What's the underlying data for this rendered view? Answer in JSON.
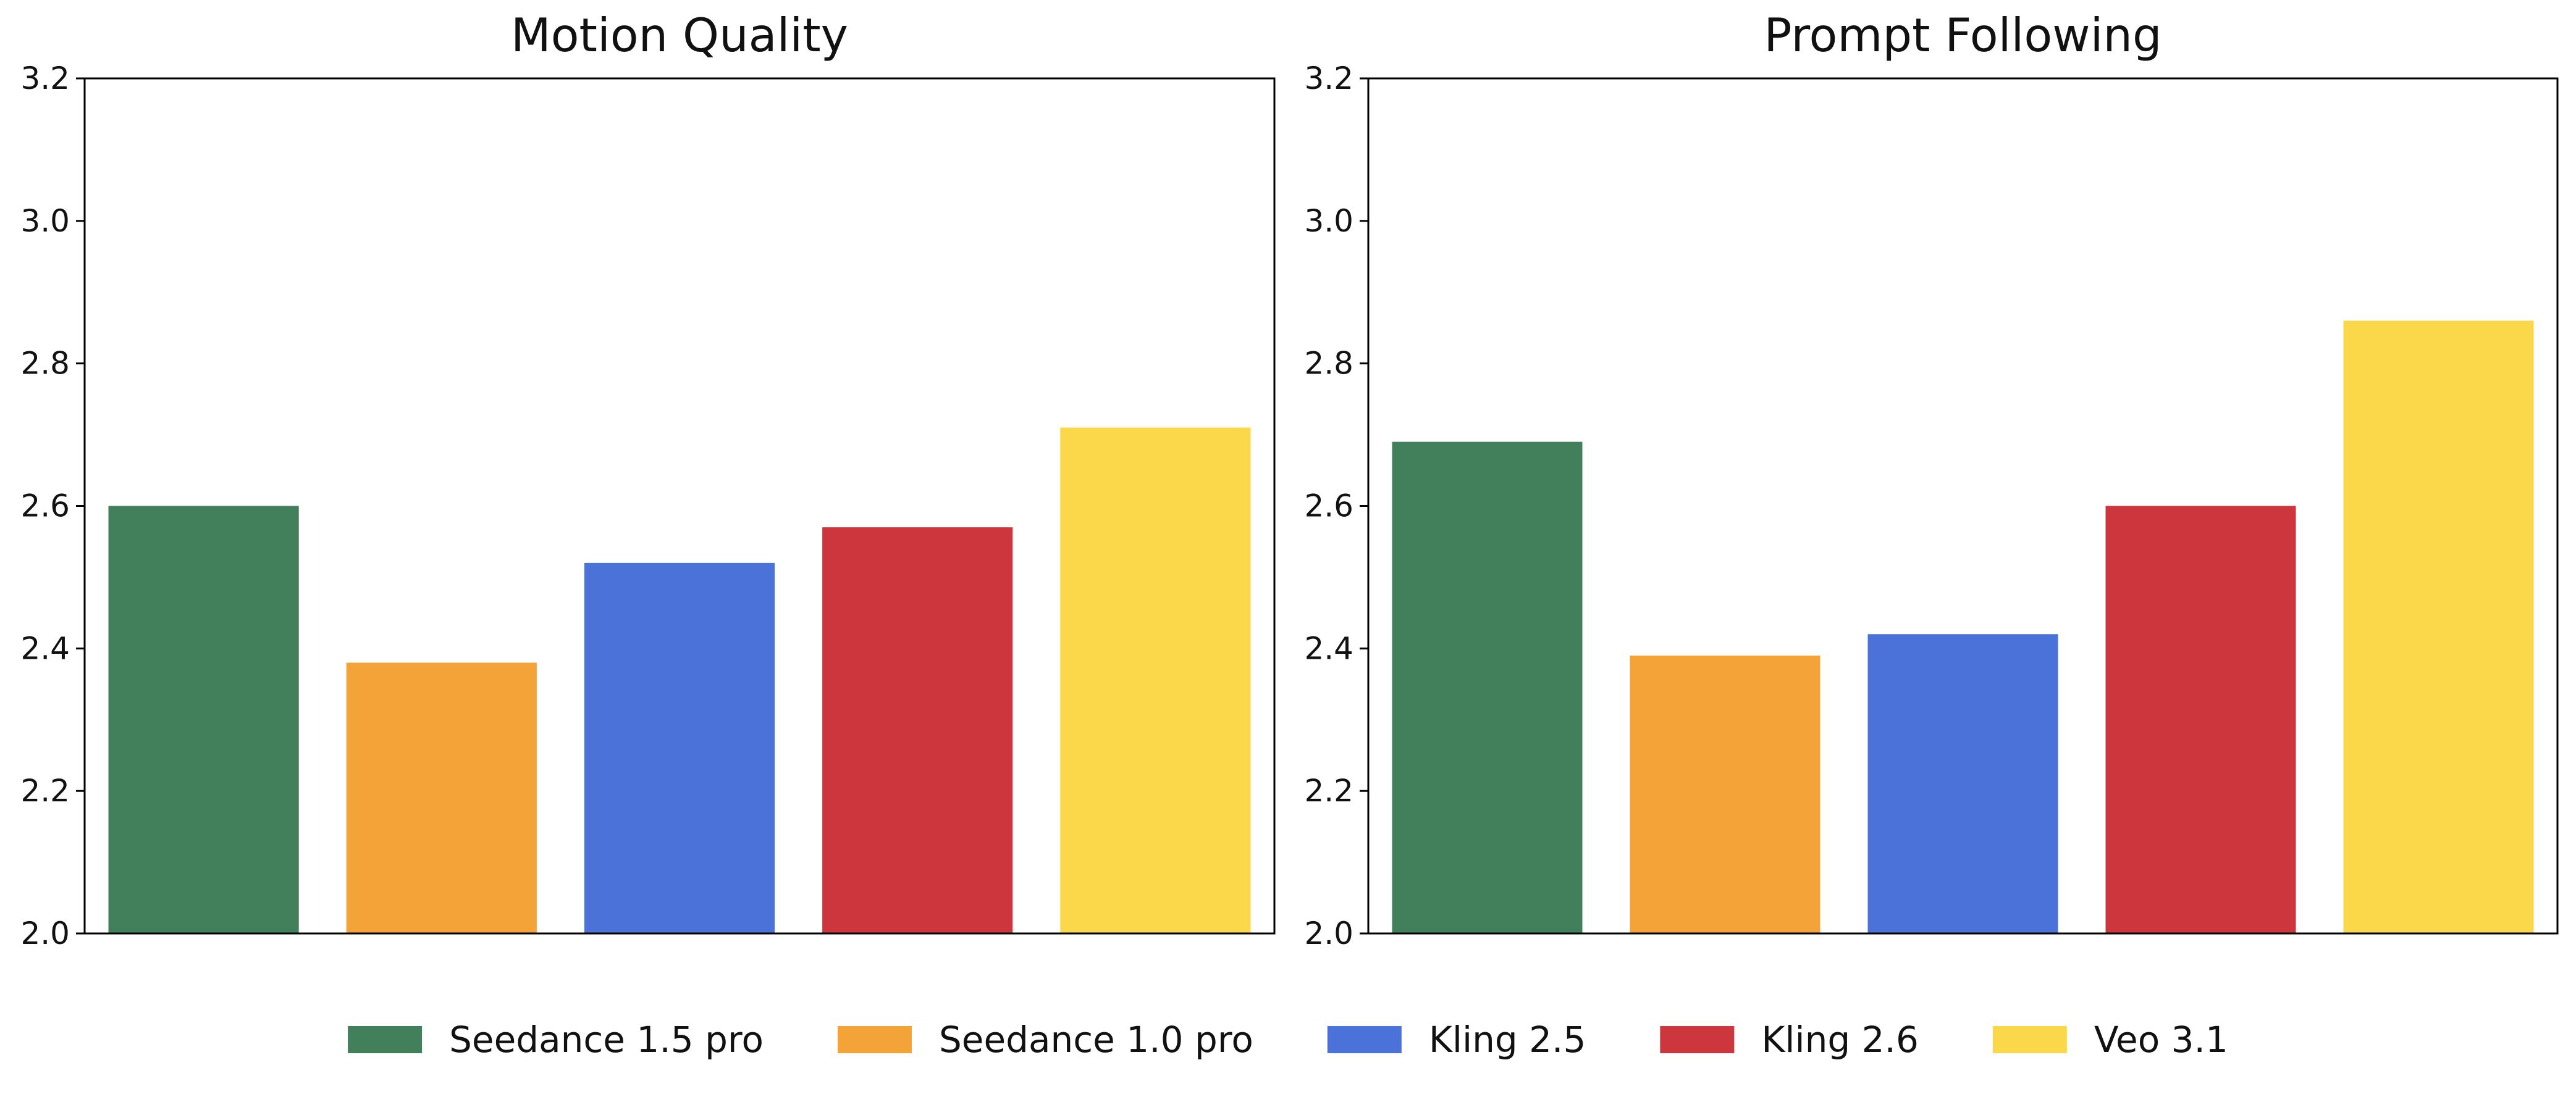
{
  "legend": {
    "placement": "bottom-center",
    "entries": [
      {
        "label": "Seedance 1.5 pro",
        "color": "#41805a"
      },
      {
        "label": "Seedance 1.0 pro",
        "color": "#f4a338"
      },
      {
        "label": "Kling 2.5",
        "color": "#4a72d9"
      },
      {
        "label": "Kling 2.6",
        "color": "#cc363c"
      },
      {
        "label": "Veo 3.1",
        "color": "#fbd84a"
      }
    ]
  },
  "chart_data": [
    {
      "type": "bar",
      "title": "Motion Quality",
      "categories": [
        "Seedance 1.5 pro",
        "Seedance 1.0 pro",
        "Kling 2.5",
        "Kling 2.6",
        "Veo 3.1"
      ],
      "values": [
        2.6,
        2.38,
        2.52,
        2.57,
        2.71
      ],
      "colors": [
        "#41805a",
        "#f4a338",
        "#4a72d9",
        "#cc363c",
        "#fbd84a"
      ],
      "ylim": [
        2.0,
        3.2
      ],
      "yticks": [
        "2.0",
        "2.2",
        "2.4",
        "2.6",
        "2.8",
        "3.0",
        "3.2"
      ],
      "grid": false
    },
    {
      "type": "bar",
      "title": "Prompt Following",
      "categories": [
        "Seedance 1.5 pro",
        "Seedance 1.0 pro",
        "Kling 2.5",
        "Kling 2.6",
        "Veo 3.1"
      ],
      "values": [
        2.69,
        2.39,
        2.42,
        2.6,
        2.86
      ],
      "colors": [
        "#41805a",
        "#f4a338",
        "#4a72d9",
        "#cc363c",
        "#fbd84a"
      ],
      "ylim": [
        2.0,
        3.2
      ],
      "yticks": [
        "2.0",
        "2.2",
        "2.4",
        "2.6",
        "2.8",
        "3.0",
        "3.2"
      ],
      "grid": false
    }
  ]
}
